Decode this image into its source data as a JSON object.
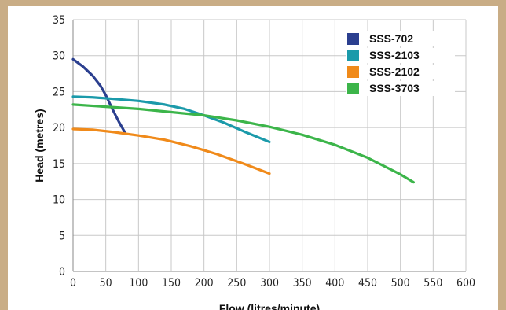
{
  "chart_data": {
    "type": "line",
    "title": "",
    "xlabel": "Flow (litres/minute)",
    "ylabel": "Head (metres)",
    "xlim": [
      0,
      600
    ],
    "ylim": [
      0,
      35
    ],
    "x_ticks": [
      0,
      50,
      100,
      150,
      200,
      250,
      300,
      350,
      400,
      450,
      500,
      550,
      600
    ],
    "y_ticks": [
      0,
      5,
      10,
      15,
      20,
      25,
      30,
      35
    ],
    "grid": true,
    "legend_position": "top-right",
    "series": [
      {
        "name": "SSS-702",
        "color": "#2b3f8f",
        "points": [
          [
            0,
            29.5
          ],
          [
            15,
            28.5
          ],
          [
            30,
            27.2
          ],
          [
            42,
            25.8
          ],
          [
            50,
            24.5
          ],
          [
            60,
            22.6
          ],
          [
            70,
            20.8
          ],
          [
            80,
            19.2
          ]
        ]
      },
      {
        "name": "SSS-2103",
        "color": "#1b9aaa",
        "points": [
          [
            0,
            24.3
          ],
          [
            30,
            24.2
          ],
          [
            60,
            24.0
          ],
          [
            100,
            23.7
          ],
          [
            140,
            23.2
          ],
          [
            170,
            22.6
          ],
          [
            200,
            21.7
          ],
          [
            230,
            20.7
          ],
          [
            260,
            19.5
          ],
          [
            300,
            18.0
          ]
        ]
      },
      {
        "name": "SSS-2102",
        "color": "#f08a1a",
        "points": [
          [
            0,
            19.8
          ],
          [
            30,
            19.7
          ],
          [
            60,
            19.4
          ],
          [
            100,
            18.9
          ],
          [
            140,
            18.3
          ],
          [
            180,
            17.4
          ],
          [
            220,
            16.3
          ],
          [
            260,
            15.0
          ],
          [
            300,
            13.6
          ]
        ]
      },
      {
        "name": "SSS-3703",
        "color": "#3cb54a",
        "points": [
          [
            0,
            23.2
          ],
          [
            100,
            22.6
          ],
          [
            200,
            21.7
          ],
          [
            250,
            21.0
          ],
          [
            300,
            20.1
          ],
          [
            350,
            19.0
          ],
          [
            400,
            17.6
          ],
          [
            450,
            15.8
          ],
          [
            500,
            13.5
          ],
          [
            520,
            12.4
          ]
        ]
      }
    ]
  }
}
